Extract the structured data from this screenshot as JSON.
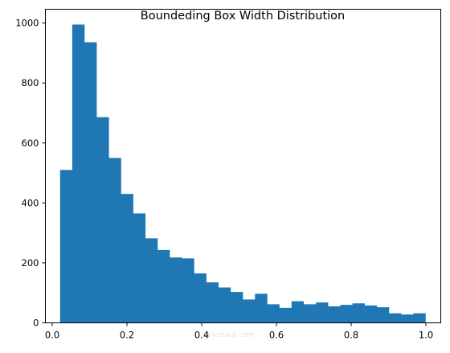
{
  "chart_data": {
    "type": "histogram",
    "title": "Boundeding Box Width Distribution",
    "xlabel": "",
    "ylabel": "",
    "xlim": [
      -0.0,
      1.0
    ],
    "ylim": [
      0,
      1046
    ],
    "bin_edges": [
      0.021,
      0.0536,
      0.0862,
      0.1188,
      0.1514,
      0.184,
      0.2166,
      0.2492,
      0.2818,
      0.3144,
      0.347,
      0.3796,
      0.4122,
      0.4448,
      0.4774,
      0.51,
      0.5426,
      0.5752,
      0.6078,
      0.6404,
      0.673,
      0.7056,
      0.7382,
      0.7708,
      0.8034,
      0.836,
      0.8686,
      0.9012,
      0.9338,
      0.9664,
      0.999
    ],
    "counts": [
      510,
      995,
      936,
      686,
      550,
      430,
      365,
      282,
      243,
      218,
      215,
      165,
      135,
      118,
      103,
      78,
      97,
      62,
      50,
      72,
      62,
      68,
      55,
      60,
      65,
      58,
      52,
      32,
      28,
      32
    ],
    "x_ticks": [
      0.0,
      0.2,
      0.4,
      0.6,
      0.8,
      1.0
    ],
    "x_tick_labels": [
      "0.0",
      "0.2",
      "0.4",
      "0.6",
      "0.8",
      "1.0"
    ],
    "y_ticks": [
      0,
      200,
      400,
      600,
      800,
      1000
    ],
    "y_tick_labels": [
      "0",
      "200",
      "400",
      "600",
      "800",
      "1000"
    ],
    "bar_color": "#1f77b4",
    "grid": false,
    "legend": "none"
  },
  "watermark": {
    "text": "mostaql.com",
    "color": "#c9c9c9"
  }
}
